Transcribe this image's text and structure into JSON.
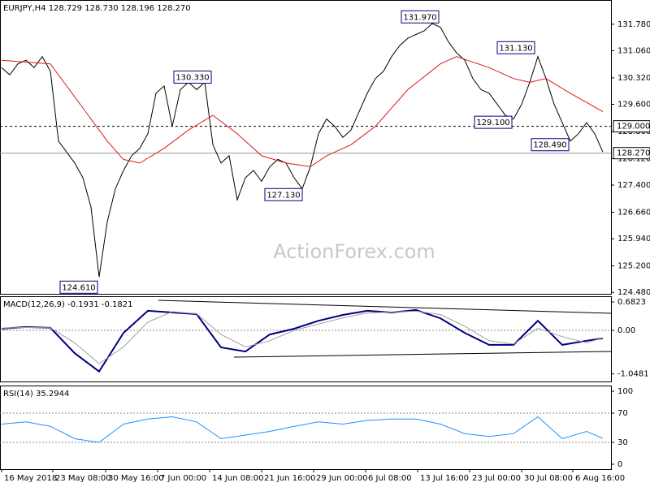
{
  "chart_data": [
    {
      "type": "line",
      "title": "EURJPY,H4 128.729 128.730 128.196 128.270",
      "watermark": "ActionForex.com",
      "xlim": [
        -0.2,
        75
      ],
      "ylim": [
        124.44,
        132.44
      ],
      "x": [
        0,
        1,
        2,
        3,
        4,
        5,
        6,
        7,
        8,
        9,
        10,
        11,
        12,
        13,
        14,
        15,
        16,
        17,
        18,
        19,
        20,
        21,
        22,
        23,
        24,
        25,
        26,
        27,
        28,
        29,
        30,
        31,
        32,
        33,
        34,
        35,
        36,
        37,
        38,
        39,
        40,
        41,
        42,
        43,
        44,
        45,
        46,
        47,
        48,
        49,
        50,
        51,
        52,
        53,
        54,
        55,
        56,
        57,
        58,
        59,
        60,
        61,
        62,
        63,
        64,
        65,
        66,
        67,
        68,
        69,
        70,
        71,
        72,
        73,
        74
      ],
      "series": [
        {
          "color": "#000000",
          "values": [
            130.6,
            130.4,
            130.7,
            130.8,
            130.6,
            130.9,
            130.5,
            128.6,
            128.3,
            128.0,
            127.6,
            126.8,
            124.9,
            126.4,
            127.3,
            127.8,
            128.2,
            128.4,
            128.8,
            129.9,
            130.1,
            129.0,
            130.0,
            130.2,
            130.0,
            130.2,
            128.5,
            128.0,
            128.2,
            127.0,
            127.6,
            127.8,
            127.5,
            127.9,
            128.1,
            128.0,
            127.6,
            127.3,
            127.9,
            128.8,
            129.2,
            129.0,
            128.7,
            128.9,
            129.4,
            129.9,
            130.3,
            130.5,
            130.9,
            131.2,
            131.4,
            131.5,
            131.6,
            131.8,
            131.7,
            131.3,
            131.0,
            130.8,
            130.3,
            130.0,
            129.9,
            129.6,
            129.3,
            129.2,
            129.6,
            130.2,
            130.9,
            130.3,
            129.6,
            129.1,
            128.6,
            128.8,
            129.1,
            128.8,
            128.3
          ]
        },
        {
          "color": "#e01818",
          "x": [
            0,
            6,
            10,
            13,
            15,
            17,
            20,
            23,
            26,
            29,
            32,
            35,
            38,
            40,
            43,
            46,
            50,
            54,
            56,
            60,
            63,
            65,
            67,
            70,
            74
          ],
          "values": [
            130.8,
            130.7,
            129.5,
            128.6,
            128.1,
            128.0,
            128.4,
            128.9,
            129.3,
            128.8,
            128.2,
            128.0,
            127.9,
            128.2,
            128.5,
            129.0,
            130.0,
            130.7,
            130.9,
            130.6,
            130.3,
            130.2,
            130.3,
            129.9,
            129.4
          ]
        }
      ],
      "yticks": [
        {
          "value": 131.78,
          "label": "131.780"
        },
        {
          "value": 131.06,
          "label": "131.060"
        },
        {
          "value": 130.32,
          "label": "130.320"
        },
        {
          "value": 129.6,
          "label": "129.600"
        },
        {
          "value": 128.86,
          "label": "128.860"
        },
        {
          "value": 128.12,
          "label": "128.120"
        },
        {
          "value": 127.4,
          "label": "127.400"
        },
        {
          "value": 126.66,
          "label": "126.660"
        },
        {
          "value": 125.94,
          "label": "125.940"
        },
        {
          "value": 125.2,
          "label": "125.200"
        },
        {
          "value": 124.48,
          "label": "124.480"
        }
      ],
      "hlines": [
        {
          "value": 129,
          "label": "129.000",
          "style": "dashed"
        },
        {
          "value": 128.27,
          "label": "128.270",
          "style": "solid"
        }
      ],
      "annotations": [
        {
          "x": 53.8,
          "value": 131.97,
          "label": "131.970"
        },
        {
          "x": 65.6,
          "value": 131.13,
          "label": "131.130"
        },
        {
          "x": 25.8,
          "value": 130.33,
          "label": "130.330"
        },
        {
          "x": 62.8,
          "value": 129.1,
          "label": "129.100"
        },
        {
          "x": 69.8,
          "value": 128.49,
          "label": "128.490"
        },
        {
          "x": 37,
          "value": 127.13,
          "label": "127.130"
        },
        {
          "x": 11.8,
          "value": 124.61,
          "label": "124.610"
        }
      ]
    },
    {
      "type": "line",
      "title": "MACD(12,26,9) -0.1931 -0.1821",
      "xlim": [
        -0.2,
        75
      ],
      "ylim": [
        -1.23,
        0.82
      ],
      "x": [
        0,
        3,
        6,
        9,
        12,
        15,
        18,
        21,
        24,
        27,
        30,
        33,
        36,
        39,
        42,
        45,
        48,
        51,
        54,
        57,
        60,
        63,
        66,
        69,
        72,
        74
      ],
      "series": [
        {
          "color": "#000080",
          "width": 2,
          "values": [
            0.04,
            0.08,
            0.06,
            -0.55,
            -0.99,
            -0.06,
            0.47,
            0.43,
            0.39,
            -0.41,
            -0.51,
            -0.1,
            0.04,
            0.23,
            0.37,
            0.47,
            0.43,
            0.49,
            0.29,
            -0.06,
            -0.35,
            -0.35,
            0.23,
            -0.35,
            -0.25,
            -0.19
          ]
        },
        {
          "color": "#a0a0a0",
          "width": 1,
          "values": [
            0.05,
            0.07,
            0.06,
            -0.3,
            -0.8,
            -0.4,
            0.2,
            0.45,
            0.4,
            -0.1,
            -0.4,
            -0.25,
            0.0,
            0.15,
            0.3,
            0.42,
            0.44,
            0.46,
            0.38,
            0.1,
            -0.25,
            -0.33,
            0.05,
            -0.15,
            -0.3,
            -0.18
          ]
        }
      ],
      "yticks": [
        0.6823,
        {
          "value": 0,
          "label": "0.00"
        },
        -1.0481
      ],
      "levels": [
        0
      ]
    },
    {
      "type": "line",
      "title": "RSI(14) 35.2944",
      "xlim": [
        -0.2,
        75
      ],
      "ylim": [
        -6.7,
        107.8
      ],
      "x": [
        0,
        3,
        6,
        9,
        12,
        15,
        18,
        21,
        24,
        27,
        30,
        33,
        36,
        39,
        42,
        45,
        48,
        51,
        54,
        57,
        60,
        63,
        66,
        69,
        72,
        74
      ],
      "series": [
        {
          "color": "#1e90ff",
          "width": 1,
          "values": [
            55,
            58,
            52,
            35,
            30,
            55,
            62,
            65,
            58,
            35,
            40,
            45,
            52,
            58,
            55,
            60,
            62,
            62,
            55,
            42,
            38,
            42,
            65,
            35,
            45,
            35.29
          ]
        }
      ],
      "yticks": [
        100,
        70,
        30,
        0
      ],
      "levels": [
        70,
        30
      ],
      "xticks": [
        {
          "value": 0,
          "label": "16 May 2018"
        },
        {
          "value": 6.3,
          "label": "23 May 08:00"
        },
        {
          "value": 12.8,
          "label": "30 May 16:00"
        },
        {
          "value": 19.2,
          "label": "7 Jun 00:00"
        },
        {
          "value": 25.6,
          "label": "14 Jun 08:00"
        },
        {
          "value": 32,
          "label": "21 Jun 16:00"
        },
        {
          "value": 38.4,
          "label": "29 Jun 00:00"
        },
        {
          "value": 44.8,
          "label": "6 Jul 08:00"
        },
        {
          "value": 51.2,
          "label": "13 Jul 16:00"
        },
        {
          "value": 57.6,
          "label": "23 Jul 00:00"
        },
        {
          "value": 64,
          "label": "30 Jul 08:00"
        },
        {
          "value": 70.3,
          "label": "6 Aug 16:00"
        }
      ]
    }
  ]
}
